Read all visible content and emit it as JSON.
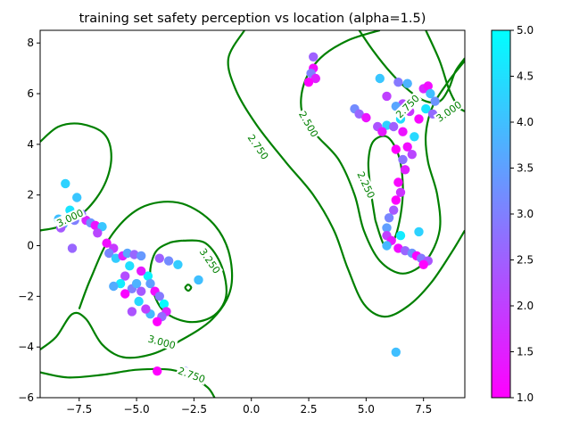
{
  "chart_data": {
    "type": "scatter",
    "title": "training set safety perception vs location (alpha=1.5)",
    "xlabel": "",
    "ylabel": "",
    "xlim": [
      -9.2,
      9.3
    ],
    "ylim": [
      -6.0,
      8.5
    ],
    "x_ticks": [
      -7.5,
      -5.0,
      -2.5,
      0.0,
      2.5,
      5.0,
      7.5
    ],
    "x_tick_labels": [
      "−7.5",
      "−5.0",
      "−2.5",
      "0.0",
      "2.5",
      "5.0",
      "7.5"
    ],
    "y_ticks": [
      -6,
      -4,
      -2,
      0,
      2,
      4,
      6,
      8
    ],
    "y_tick_labels": [
      "−6",
      "−4",
      "−2",
      "0",
      "2",
      "4",
      "6",
      "8"
    ],
    "grid": false,
    "colorbar": {
      "cmap": "cool",
      "range": [
        1.0,
        5.0
      ],
      "ticks": [
        1.0,
        1.5,
        2.0,
        2.5,
        3.0,
        3.5,
        4.0,
        4.5,
        5.0
      ],
      "tick_labels": [
        "1.0",
        "1.5",
        "2.0",
        "2.5",
        "3.0",
        "3.5",
        "4.0",
        "4.5",
        "5.0"
      ],
      "color_low": "#ff00ff",
      "color_high": "#00ffff"
    },
    "contour_color": "#008000",
    "contour_labels": [
      {
        "text": "3.000",
        "x": -7.9,
        "y": 1.1,
        "angle": -25
      },
      {
        "text": "3.250",
        "x": -1.8,
        "y": -0.6,
        "angle": 55
      },
      {
        "text": "3.000",
        "x": -3.9,
        "y": -3.8,
        "angle": 15
      },
      {
        "text": "2.750",
        "x": -2.6,
        "y": -5.1,
        "angle": 20
      },
      {
        "text": "2.750",
        "x": 0.3,
        "y": 3.9,
        "angle": 55
      },
      {
        "text": "2.500",
        "x": 2.5,
        "y": 4.8,
        "angle": 60
      },
      {
        "text": "2.250",
        "x": 5.0,
        "y": 2.4,
        "angle": 65
      },
      {
        "text": "2.750",
        "x": 6.8,
        "y": 5.5,
        "angle": -45
      },
      {
        "text": "3.000",
        "x": 8.6,
        "y": 5.3,
        "angle": -35
      }
    ],
    "contours": [
      {
        "level": "3.000",
        "points": [
          [
            -9.2,
            0.6
          ],
          [
            -8.2,
            0.8
          ],
          [
            -7.2,
            1.4
          ],
          [
            -6.4,
            2.4
          ],
          [
            -6.1,
            3.5
          ],
          [
            -6.4,
            4.4
          ],
          [
            -7.4,
            4.8
          ],
          [
            -8.4,
            4.7
          ],
          [
            -9.2,
            4.1
          ]
        ]
      },
      {
        "level": "3.000",
        "points": [
          [
            -9.2,
            -4.1
          ],
          [
            -8.5,
            -3.6
          ],
          [
            -7.8,
            -2.7
          ],
          [
            -7.2,
            -2.9
          ],
          [
            -6.5,
            -3.9
          ],
          [
            -5.6,
            -4.4
          ],
          [
            -4.4,
            -4.3
          ],
          [
            -3.2,
            -3.8
          ],
          [
            -1.7,
            -2.9
          ],
          [
            -0.9,
            -1.7
          ],
          [
            -1.0,
            -0.2
          ],
          [
            -1.8,
            1.0
          ],
          [
            -3.2,
            1.7
          ],
          [
            -4.8,
            1.5
          ],
          [
            -6.1,
            0.4
          ],
          [
            -7.0,
            -1.3
          ],
          [
            -7.5,
            -2.5
          ]
        ]
      },
      {
        "level": "3.250",
        "points": [
          [
            -3.0,
            0.2
          ],
          [
            -2.0,
            0.1
          ],
          [
            -1.3,
            -0.8
          ],
          [
            -1.1,
            -2.0
          ],
          [
            -1.7,
            -2.8
          ],
          [
            -2.8,
            -3.0
          ],
          [
            -3.9,
            -2.5
          ],
          [
            -4.4,
            -1.3
          ],
          [
            -4.2,
            -0.3
          ],
          [
            -3.6,
            0.1
          ],
          [
            -3.0,
            0.2
          ]
        ]
      },
      {
        "level": "3.250",
        "points": [
          [
            -2.75,
            -1.52
          ],
          [
            -2.62,
            -1.65
          ],
          [
            -2.75,
            -1.78
          ],
          [
            -2.88,
            -1.65
          ],
          [
            -2.75,
            -1.52
          ]
        ]
      },
      {
        "level": "2.750",
        "points": [
          [
            -9.2,
            -5.0
          ],
          [
            -8.0,
            -5.2
          ],
          [
            -6.5,
            -5.1
          ],
          [
            -5.0,
            -4.9
          ],
          [
            -3.5,
            -4.9
          ],
          [
            -2.6,
            -5.2
          ],
          [
            -1.9,
            -5.6
          ],
          [
            -1.6,
            -6.0
          ]
        ]
      },
      {
        "level": "2.750",
        "points": [
          [
            -0.3,
            8.5
          ],
          [
            -1.0,
            7.4
          ],
          [
            -0.7,
            6.2
          ],
          [
            0.2,
            4.8
          ],
          [
            1.5,
            3.3
          ],
          [
            2.7,
            2.0
          ],
          [
            3.6,
            0.6
          ],
          [
            4.2,
            -0.9
          ],
          [
            4.9,
            -2.3
          ],
          [
            5.8,
            -2.8
          ],
          [
            6.8,
            -2.4
          ],
          [
            7.8,
            -1.5
          ],
          [
            8.7,
            -0.3
          ],
          [
            9.3,
            0.6
          ]
        ]
      },
      {
        "level": "2.500",
        "points": [
          [
            5.6,
            8.5
          ],
          [
            4.2,
            8.1
          ],
          [
            3.0,
            7.4
          ],
          [
            2.3,
            6.4
          ],
          [
            2.2,
            5.3
          ],
          [
            2.8,
            4.4
          ],
          [
            3.8,
            3.4
          ],
          [
            4.5,
            2.0
          ],
          [
            4.9,
            0.6
          ],
          [
            5.6,
            -0.6
          ],
          [
            6.6,
            -1.1
          ],
          [
            7.6,
            -0.6
          ],
          [
            8.2,
            0.6
          ],
          [
            8.1,
            2.0
          ],
          [
            7.7,
            3.3
          ],
          [
            7.6,
            4.4
          ],
          [
            7.9,
            5.5
          ],
          [
            8.6,
            6.5
          ],
          [
            9.3,
            7.3
          ]
        ]
      },
      {
        "level": "2.250",
        "points": [
          [
            5.4,
            1.0
          ],
          [
            5.2,
            2.2
          ],
          [
            5.1,
            3.3
          ],
          [
            5.3,
            4.1
          ],
          [
            5.9,
            4.3
          ],
          [
            6.4,
            3.6
          ],
          [
            6.6,
            2.4
          ],
          [
            6.5,
            1.2
          ],
          [
            6.2,
            0.2
          ],
          [
            5.8,
            0.0
          ],
          [
            5.4,
            1.0
          ]
        ]
      },
      {
        "level": "2.750",
        "points": [
          [
            4.7,
            8.5
          ],
          [
            5.3,
            7.7
          ],
          [
            6.1,
            6.8
          ],
          [
            6.9,
            6.1
          ],
          [
            7.6,
            5.7
          ],
          [
            8.2,
            5.7
          ],
          [
            8.6,
            6.2
          ],
          [
            8.9,
            6.9
          ],
          [
            9.3,
            7.4
          ]
        ]
      },
      {
        "level": "3.000",
        "points": [
          [
            7.6,
            8.5
          ],
          [
            8.2,
            7.3
          ],
          [
            8.6,
            6.2
          ],
          [
            9.0,
            5.5
          ],
          [
            9.3,
            5.3
          ]
        ]
      }
    ],
    "points": [
      {
        "x": -8.1,
        "y": 2.45,
        "v": 4.3
      },
      {
        "x": -7.6,
        "y": 1.9,
        "v": 4.1
      },
      {
        "x": -8.4,
        "y": 1.05,
        "v": 4.0
      },
      {
        "x": -8.2,
        "y": 0.85,
        "v": 3.7
      },
      {
        "x": -8.3,
        "y": 0.7,
        "v": 2.4
      },
      {
        "x": -7.9,
        "y": 1.4,
        "v": 4.6
      },
      {
        "x": -7.4,
        "y": 1.25,
        "v": 2.8
      },
      {
        "x": -7.7,
        "y": 1.0,
        "v": 3.0
      },
      {
        "x": -7.2,
        "y": 1.0,
        "v": 1.6
      },
      {
        "x": -7.0,
        "y": 0.9,
        "v": 3.3
      },
      {
        "x": -6.8,
        "y": 0.8,
        "v": 1.3
      },
      {
        "x": -6.5,
        "y": 0.75,
        "v": 4.1
      },
      {
        "x": -6.7,
        "y": 0.5,
        "v": 2.1
      },
      {
        "x": -6.3,
        "y": 0.1,
        "v": 1.2
      },
      {
        "x": -6.0,
        "y": -0.1,
        "v": 1.9
      },
      {
        "x": -6.2,
        "y": -0.3,
        "v": 3.1
      },
      {
        "x": -5.9,
        "y": -0.5,
        "v": 4.2
      },
      {
        "x": -5.6,
        "y": -0.4,
        "v": 1.5
      },
      {
        "x": -5.4,
        "y": -0.3,
        "v": 3.6
      },
      {
        "x": -5.1,
        "y": -0.35,
        "v": 2.6
      },
      {
        "x": -4.8,
        "y": -0.4,
        "v": 3.4
      },
      {
        "x": -5.3,
        "y": -0.8,
        "v": 4.5
      },
      {
        "x": -5.5,
        "y": -1.2,
        "v": 2.2
      },
      {
        "x": -5.7,
        "y": -1.5,
        "v": 4.7
      },
      {
        "x": -5.2,
        "y": -1.7,
        "v": 3.0
      },
      {
        "x": -5.5,
        "y": -1.9,
        "v": 1.1
      },
      {
        "x": -5.0,
        "y": -1.5,
        "v": 3.8
      },
      {
        "x": -4.8,
        "y": -1.8,
        "v": 2.4
      },
      {
        "x": -4.5,
        "y": -1.2,
        "v": 4.8
      },
      {
        "x": -4.4,
        "y": -1.5,
        "v": 3.5
      },
      {
        "x": -4.2,
        "y": -1.8,
        "v": 1.2
      },
      {
        "x": -4.0,
        "y": -2.0,
        "v": 2.9
      },
      {
        "x": -3.8,
        "y": -2.3,
        "v": 4.9
      },
      {
        "x": -3.7,
        "y": -2.6,
        "v": 1.6
      },
      {
        "x": -3.9,
        "y": -2.8,
        "v": 2.7
      },
      {
        "x": -4.1,
        "y": -3.0,
        "v": 1.0
      },
      {
        "x": -4.4,
        "y": -2.7,
        "v": 3.9
      },
      {
        "x": -4.6,
        "y": -2.5,
        "v": 2.0
      },
      {
        "x": -5.2,
        "y": -2.6,
        "v": 2.3
      },
      {
        "x": -4.9,
        "y": -2.2,
        "v": 4.4
      },
      {
        "x": -4.0,
        "y": -0.5,
        "v": 2.5
      },
      {
        "x": -3.6,
        "y": -0.6,
        "v": 3.2
      },
      {
        "x": -3.2,
        "y": -0.75,
        "v": 4.2
      },
      {
        "x": -2.3,
        "y": -1.35,
        "v": 4.0
      },
      {
        "x": -6.0,
        "y": -1.6,
        "v": 3.7
      },
      {
        "x": -4.8,
        "y": -1.0,
        "v": 1.4
      },
      {
        "x": -7.8,
        "y": -0.1,
        "v": 2.6
      },
      {
        "x": -4.1,
        "y": -4.95,
        "v": 1.0
      },
      {
        "x": -2.9,
        "y": -4.95,
        "v": 3.1
      },
      {
        "x": 2.7,
        "y": 7.45,
        "v": 2.5
      },
      {
        "x": 2.7,
        "y": 7.0,
        "v": 1.2
      },
      {
        "x": 2.6,
        "y": 6.8,
        "v": 3.0
      },
      {
        "x": 2.8,
        "y": 6.6,
        "v": 1.5
      },
      {
        "x": 2.5,
        "y": 6.45,
        "v": 1.0
      },
      {
        "x": 4.5,
        "y": 5.4,
        "v": 3.2
      },
      {
        "x": 4.7,
        "y": 5.2,
        "v": 2.6
      },
      {
        "x": 5.0,
        "y": 5.05,
        "v": 1.3
      },
      {
        "x": 5.5,
        "y": 4.7,
        "v": 2.3
      },
      {
        "x": 5.9,
        "y": 4.75,
        "v": 4.3
      },
      {
        "x": 5.7,
        "y": 4.5,
        "v": 1.4
      },
      {
        "x": 5.6,
        "y": 6.6,
        "v": 4.1
      },
      {
        "x": 6.4,
        "y": 6.45,
        "v": 2.9
      },
      {
        "x": 6.8,
        "y": 6.4,
        "v": 3.8
      },
      {
        "x": 7.5,
        "y": 6.2,
        "v": 1.6
      },
      {
        "x": 7.7,
        "y": 6.3,
        "v": 1.2
      },
      {
        "x": 7.8,
        "y": 6.0,
        "v": 4.0
      },
      {
        "x": 8.0,
        "y": 5.7,
        "v": 3.3
      },
      {
        "x": 7.6,
        "y": 5.4,
        "v": 4.6
      },
      {
        "x": 7.9,
        "y": 5.2,
        "v": 2.7
      },
      {
        "x": 7.3,
        "y": 5.0,
        "v": 1.1
      },
      {
        "x": 6.9,
        "y": 5.3,
        "v": 1.9
      },
      {
        "x": 6.6,
        "y": 5.6,
        "v": 2.2
      },
      {
        "x": 6.3,
        "y": 5.5,
        "v": 3.6
      },
      {
        "x": 5.9,
        "y": 5.9,
        "v": 2.0
      },
      {
        "x": 6.5,
        "y": 5.0,
        "v": 4.5
      },
      {
        "x": 6.2,
        "y": 4.7,
        "v": 2.5
      },
      {
        "x": 6.6,
        "y": 4.5,
        "v": 1.3
      },
      {
        "x": 7.1,
        "y": 4.3,
        "v": 4.4
      },
      {
        "x": 6.8,
        "y": 3.9,
        "v": 1.2
      },
      {
        "x": 7.0,
        "y": 3.6,
        "v": 2.1
      },
      {
        "x": 6.3,
        "y": 3.8,
        "v": 1.0
      },
      {
        "x": 6.6,
        "y": 3.4,
        "v": 2.8
      },
      {
        "x": 6.7,
        "y": 3.0,
        "v": 1.5
      },
      {
        "x": 6.4,
        "y": 2.5,
        "v": 1.1
      },
      {
        "x": 6.5,
        "y": 2.1,
        "v": 1.8
      },
      {
        "x": 6.3,
        "y": 1.8,
        "v": 1.0
      },
      {
        "x": 6.2,
        "y": 1.4,
        "v": 2.4
      },
      {
        "x": 6.0,
        "y": 1.1,
        "v": 3.1
      },
      {
        "x": 5.9,
        "y": 0.7,
        "v": 3.5
      },
      {
        "x": 5.9,
        "y": 0.4,
        "v": 2.0
      },
      {
        "x": 6.1,
        "y": 0.2,
        "v": 1.4
      },
      {
        "x": 6.5,
        "y": 0.4,
        "v": 4.7
      },
      {
        "x": 5.9,
        "y": 0.0,
        "v": 3.9
      },
      {
        "x": 6.4,
        "y": -0.1,
        "v": 1.2
      },
      {
        "x": 6.7,
        "y": -0.2,
        "v": 2.6
      },
      {
        "x": 7.0,
        "y": -0.3,
        "v": 3.3
      },
      {
        "x": 7.2,
        "y": -0.4,
        "v": 1.1
      },
      {
        "x": 7.4,
        "y": -0.5,
        "v": 2.9
      },
      {
        "x": 7.7,
        "y": -0.6,
        "v": 2.3
      },
      {
        "x": 7.5,
        "y": -0.75,
        "v": 1.0
      },
      {
        "x": 7.3,
        "y": 0.55,
        "v": 4.3
      },
      {
        "x": 6.3,
        "y": -4.2,
        "v": 4.0
      }
    ]
  }
}
